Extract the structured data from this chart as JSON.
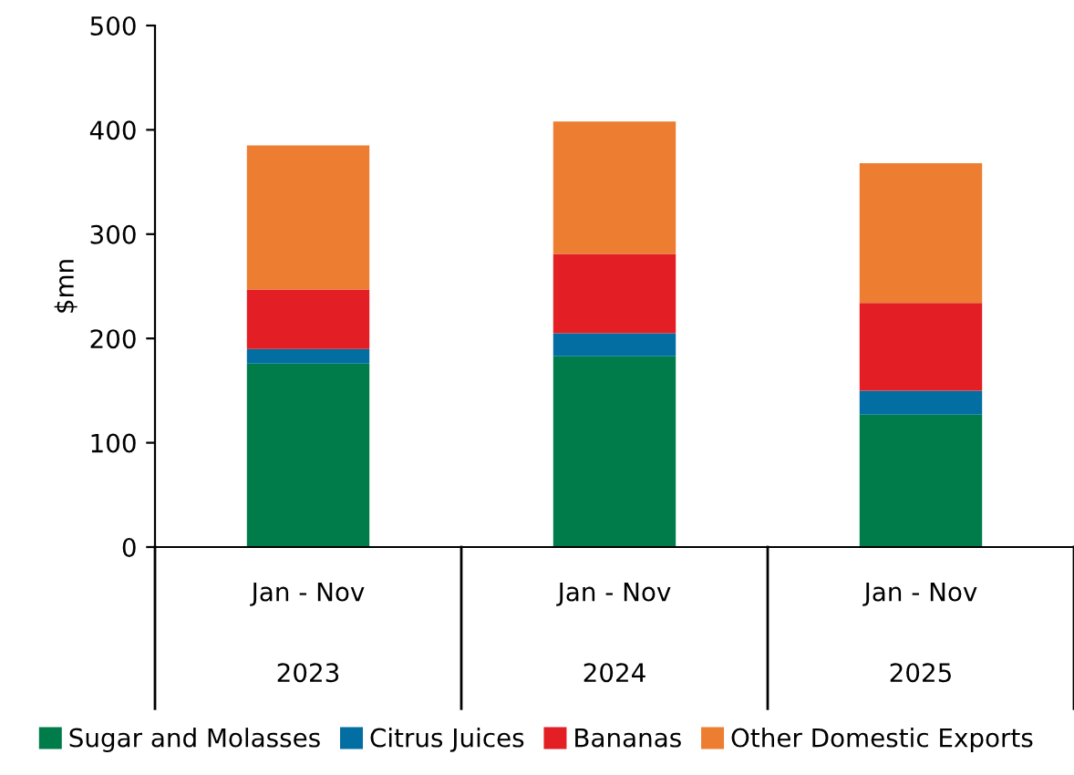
{
  "chart_data": {
    "type": "bar",
    "stacked": true,
    "ylabel": "$mn",
    "categories": [
      "Jan - Nov\n2023",
      "Jan - Nov\n2024",
      "Jan - Nov\n2025"
    ],
    "series": [
      {
        "name": "Sugar and Molasses",
        "color": "#007c4a",
        "values": [
          176,
          183,
          127
        ]
      },
      {
        "name": "Citrus Juices",
        "color": "#026ea1",
        "values": [
          14,
          22,
          23
        ]
      },
      {
        "name": "Bananas",
        "color": "#e31e25",
        "values": [
          57,
          76,
          84
        ]
      },
      {
        "name": "Other Domestic Exports",
        "color": "#ed7d31",
        "values": [
          138,
          127,
          134
        ]
      }
    ],
    "ylim": [
      0,
      500
    ],
    "yticks": [
      0,
      100,
      200,
      300,
      400,
      500
    ],
    "grid": false,
    "legend": "bottom"
  }
}
